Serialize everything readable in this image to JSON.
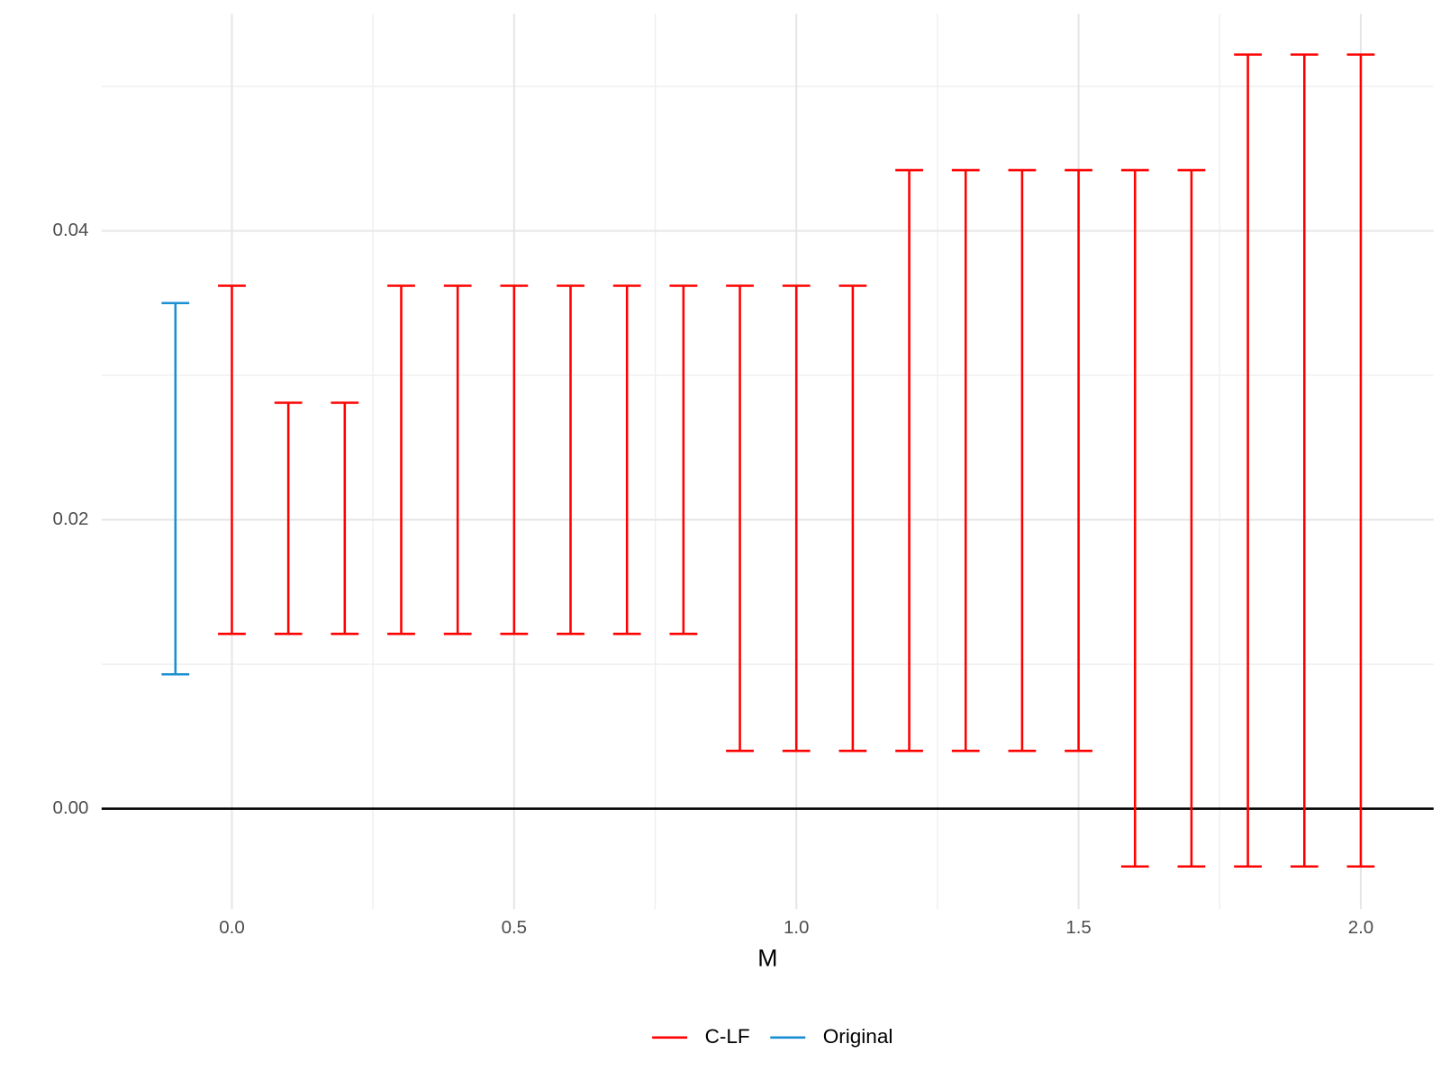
{
  "chart_data": {
    "type": "errorbar",
    "xlabel": "M",
    "xlim": [
      -0.2308,
      2.129
    ],
    "ylim": [
      -0.00696,
      0.05502
    ],
    "xticks": [
      {
        "value": 0,
        "label": "0.0"
      },
      0.5,
      {
        "value": 1,
        "label": "1.0"
      },
      1.5,
      {
        "value": 2,
        "label": "2.0"
      }
    ],
    "yticks": [
      {
        "value": 0,
        "label": "0.00"
      },
      0.02,
      0.04
    ],
    "xminor": [
      0.25,
      0.75,
      1.25,
      1.75
    ],
    "yminor": [
      0.01,
      0.03,
      0.05
    ],
    "hline": 0,
    "grid": true,
    "legend": "bottom",
    "series": [
      {
        "name": "C-LF",
        "color": "#ff0000",
        "x": [
          0,
          0.1,
          0.2,
          0.3,
          0.4,
          0.5,
          0.6,
          0.7,
          0.8,
          0.9,
          1.0,
          1.1,
          1.2,
          1.3,
          1.4,
          1.5,
          1.6,
          1.7,
          1.8,
          1.9,
          2.0
        ],
        "low": [
          0.0121,
          0.0121,
          0.0121,
          0.0121,
          0.0121,
          0.0121,
          0.0121,
          0.0121,
          0.0121,
          0.004,
          0.004,
          0.004,
          0.004,
          0.004,
          0.004,
          0.004,
          -0.004,
          -0.004,
          -0.004,
          -0.004,
          -0.004
        ],
        "high": [
          0.0362,
          0.0281,
          0.0281,
          0.0362,
          0.0362,
          0.0362,
          0.0362,
          0.0362,
          0.0362,
          0.0362,
          0.0362,
          0.0362,
          0.0442,
          0.0442,
          0.0442,
          0.0442,
          0.0442,
          0.0442,
          0.0522,
          0.0522,
          0.0522
        ]
      },
      {
        "name": "Original",
        "color": "#1a8fd1",
        "x": [
          -0.1
        ],
        "low": [
          0.0093
        ],
        "high": [
          0.035
        ]
      }
    ]
  }
}
